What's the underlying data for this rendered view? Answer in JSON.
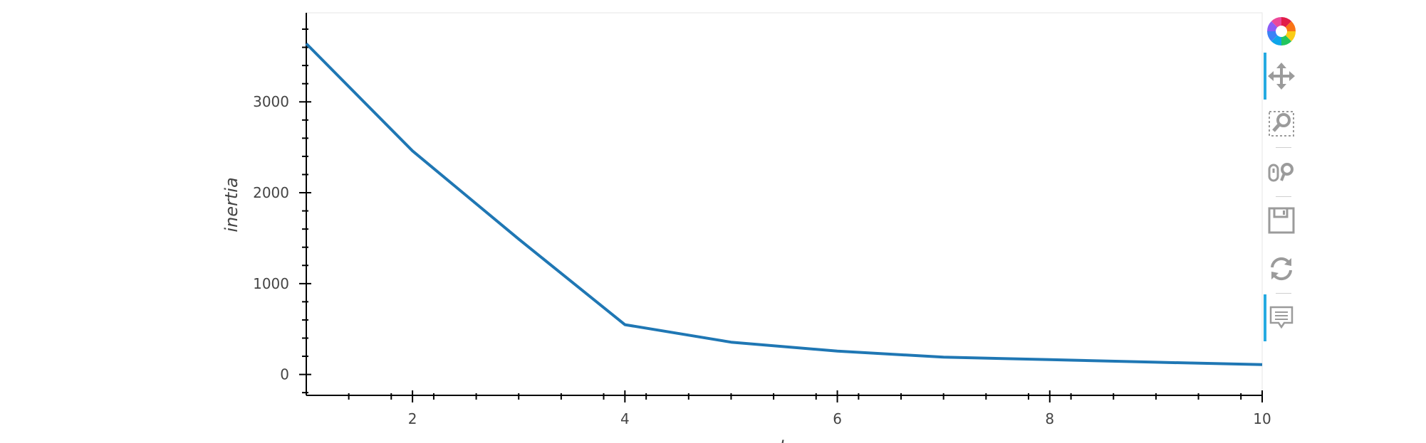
{
  "chart_data": {
    "type": "line",
    "title": "",
    "xlabel": "k",
    "ylabel": "inertia",
    "xlim": [
      1,
      10
    ],
    "ylim": [
      -230,
      3980
    ],
    "x": [
      1,
      2,
      3,
      4,
      5,
      6,
      7,
      8,
      9,
      10
    ],
    "series": [
      {
        "values": [
          3640,
          2460,
          1490,
          548,
          355,
          257,
          190,
          163,
          135,
          108
        ]
      }
    ],
    "x_major_ticks": [
      2,
      4,
      6,
      8,
      10
    ],
    "x_tick_labels": [
      "2",
      "4",
      "6",
      "8",
      "10"
    ],
    "y_major_ticks": [
      0,
      1000,
      2000,
      3000
    ],
    "y_tick_labels": [
      "0",
      "1000",
      "2000",
      "3000"
    ],
    "line_color": "#1f77b4",
    "grid": false,
    "legend": "none"
  },
  "toolbar": {
    "logo": "bokeh-logo-icon",
    "tools": [
      {
        "name": "pan-tool",
        "icon": "pan-icon",
        "active": true
      },
      {
        "name": "box-zoom-tool",
        "icon": "box-zoom-icon",
        "active": false
      },
      {
        "name": "wheel-zoom-tool",
        "icon": "wheel-zoom-icon",
        "active": false
      },
      {
        "name": "save-tool",
        "icon": "save-icon",
        "active": false
      },
      {
        "name": "reset-tool",
        "icon": "reset-icon",
        "active": false
      },
      {
        "name": "hover-tool",
        "icon": "hover-icon",
        "active": true
      }
    ],
    "accent_color": "#26aae1"
  }
}
